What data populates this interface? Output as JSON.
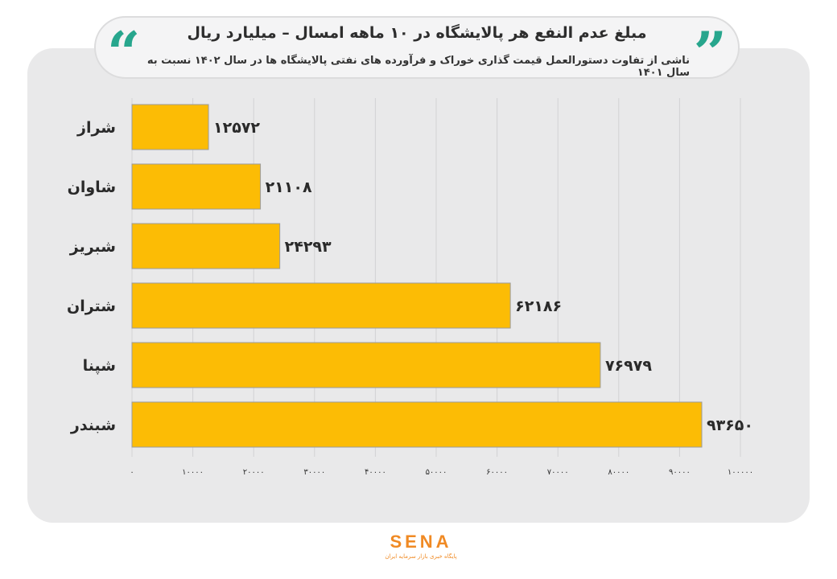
{
  "header": {
    "title": "مبلغ عدم النفع هر پالایشگاه در ۱۰ ماهه امسال – میلیارد ریال",
    "subtitle": "ناشی از تفاوت دستورالعمل قیمت گذاری خوراک و فرآورده های نفتی پالایشگاه ها در سال ۱۴۰۲ نسبت به سال ۱۴۰۱"
  },
  "chart_data": {
    "type": "bar",
    "orientation": "horizontal",
    "categories": [
      "شراز",
      "شاوان",
      "شبریز",
      "شتران",
      "شپنا",
      "شبندر"
    ],
    "values": [
      12572,
      21108,
      24293,
      62186,
      76979,
      93650
    ],
    "value_labels": [
      "۱۲۵۷۲",
      "۲۱۱۰۸",
      "۲۴۲۹۳",
      "۶۲۱۸۶",
      "۷۶۹۷۹",
      "۹۳۶۵۰"
    ],
    "xlim": [
      0,
      100000
    ],
    "xticks": [
      0,
      10000,
      20000,
      30000,
      40000,
      50000,
      60000,
      70000,
      80000,
      90000,
      100000
    ],
    "xtick_labels": [
      "۰",
      "۱۰۰۰۰",
      "۲۰۰۰۰",
      "۳۰۰۰۰",
      "۴۰۰۰۰",
      "۵۰۰۰۰",
      "۶۰۰۰۰",
      "۷۰۰۰۰",
      "۸۰۰۰۰",
      "۹۰۰۰۰",
      "۱۰۰۰۰۰"
    ],
    "grid": true,
    "bar_color": "#fcbc05"
  },
  "logo": {
    "text": "SENA",
    "subtext": "پایگاه خبری بازار سرمایه ایران"
  },
  "colors": {
    "accent": "#27a68d",
    "brand": "#f08a24"
  }
}
